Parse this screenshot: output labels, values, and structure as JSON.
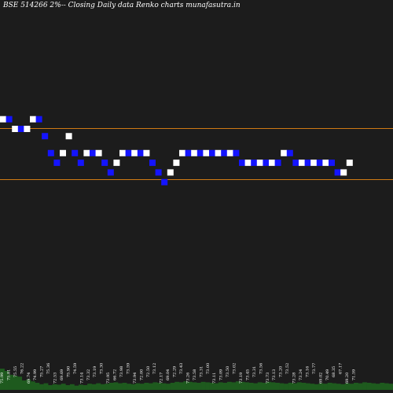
{
  "chart_data": {
    "type": "renko",
    "title": "BSE 514266  2%--  Closing Daily data  Renko  charts munafasutra.in",
    "colors": {
      "up": "#ffffff",
      "down": "#1414ff",
      "background": "#1c1c1c",
      "reference_line": "#d07a14",
      "volume": "#1e5a1e",
      "label": "#ffffff"
    },
    "ylim": [
      68.5,
      81.5
    ],
    "reference_lines": [
      77.5,
      75.4
    ],
    "bricks": [
      {
        "dir": "up",
        "top": 78.0
      },
      {
        "dir": "down",
        "top": 78.0
      },
      {
        "dir": "up",
        "top": 77.6
      },
      {
        "dir": "down",
        "top": 77.6
      },
      {
        "dir": "up",
        "top": 77.6
      },
      {
        "dir": "up",
        "top": 78.0
      },
      {
        "dir": "down",
        "top": 78.0
      },
      {
        "dir": "down",
        "top": 77.3
      },
      {
        "dir": "down",
        "top": 76.6
      },
      {
        "dir": "down",
        "top": 76.2
      },
      {
        "dir": "up",
        "top": 76.6
      },
      {
        "dir": "up",
        "top": 77.3
      },
      {
        "dir": "down",
        "top": 76.6
      },
      {
        "dir": "down",
        "top": 76.2
      },
      {
        "dir": "up",
        "top": 76.6
      },
      {
        "dir": "down",
        "top": 76.6
      },
      {
        "dir": "up",
        "top": 76.6
      },
      {
        "dir": "down",
        "top": 76.2
      },
      {
        "dir": "down",
        "top": 75.8
      },
      {
        "dir": "up",
        "top": 76.2
      },
      {
        "dir": "up",
        "top": 76.6
      },
      {
        "dir": "down",
        "top": 76.6
      },
      {
        "dir": "up",
        "top": 76.6
      },
      {
        "dir": "down",
        "top": 76.6
      },
      {
        "dir": "up",
        "top": 76.6
      },
      {
        "dir": "down",
        "top": 76.2
      },
      {
        "dir": "down",
        "top": 75.8
      },
      {
        "dir": "down",
        "top": 75.4
      },
      {
        "dir": "up",
        "top": 75.8
      },
      {
        "dir": "up",
        "top": 76.2
      },
      {
        "dir": "up",
        "top": 76.6
      },
      {
        "dir": "down",
        "top": 76.6
      },
      {
        "dir": "up",
        "top": 76.6
      },
      {
        "dir": "down",
        "top": 76.6
      },
      {
        "dir": "up",
        "top": 76.6
      },
      {
        "dir": "down",
        "top": 76.6
      },
      {
        "dir": "up",
        "top": 76.6
      },
      {
        "dir": "down",
        "top": 76.6
      },
      {
        "dir": "up",
        "top": 76.6
      },
      {
        "dir": "down",
        "top": 76.6
      },
      {
        "dir": "down",
        "top": 76.2
      },
      {
        "dir": "up",
        "top": 76.2
      },
      {
        "dir": "down",
        "top": 76.2
      },
      {
        "dir": "up",
        "top": 76.2
      },
      {
        "dir": "down",
        "top": 76.2
      },
      {
        "dir": "up",
        "top": 76.2
      },
      {
        "dir": "down",
        "top": 76.2
      },
      {
        "dir": "up",
        "top": 76.6
      },
      {
        "dir": "down",
        "top": 76.6
      },
      {
        "dir": "down",
        "top": 76.2
      },
      {
        "dir": "up",
        "top": 76.2
      },
      {
        "dir": "down",
        "top": 76.2
      },
      {
        "dir": "up",
        "top": 76.2
      },
      {
        "dir": "down",
        "top": 76.2
      },
      {
        "dir": "up",
        "top": 76.2
      },
      {
        "dir": "down",
        "top": 76.2
      },
      {
        "dir": "down",
        "top": 75.8
      },
      {
        "dir": "up",
        "top": 75.8
      },
      {
        "dir": "up",
        "top": 76.2
      }
    ],
    "price_labels": [
      "75.99",
      "75.81",
      "75.55",
      "76.22",
      "69.74",
      "74.99",
      "75.27",
      "75.36",
      "72.53",
      "69.69",
      "75.90",
      "74.59",
      "73.14",
      "73.32",
      "73.19",
      "73.30",
      "73.95",
      "66.72",
      "73.98",
      "73.59",
      "73.94",
      "72.00",
      "72.50",
      "73.12",
      "72.17",
      "69.04",
      "72.29",
      "73.43",
      "73.26",
      "73.58",
      "73.31",
      "73.00",
      "73.11",
      "73.09",
      "73.50",
      "73.02",
      "73.19",
      "73.45",
      "73.31",
      "73.56",
      "73.73",
      "73.13",
      "73.20",
      "73.52",
      "73.28",
      "73.24",
      "73.16",
      "73.77",
      "69.02",
      "70.49",
      "68.35",
      "67.17",
      "69.20",
      "71.59"
    ],
    "volume": [
      0.45,
      0.4,
      0.32,
      0.3,
      0.28,
      0.2,
      0.22,
      0.18,
      0.15,
      0.12,
      0.14,
      0.1,
      0.12,
      0.11,
      0.13,
      0.1,
      0.12,
      0.09,
      0.11,
      0.1,
      0.13,
      0.12,
      0.14,
      0.12,
      0.13,
      0.15,
      0.16,
      0.14,
      0.15,
      0.13,
      0.12,
      0.14,
      0.13,
      0.15,
      0.14,
      0.16,
      0.15,
      0.14,
      0.13,
      0.15,
      0.17,
      0.16,
      0.18,
      0.17,
      0.16,
      0.15,
      0.17,
      0.16,
      0.15,
      0.14,
      0.16,
      0.15,
      0.17,
      0.16,
      0.18,
      0.17,
      0.16,
      0.15,
      0.14,
      0.16,
      0.15,
      0.17,
      0.16,
      0.15,
      0.14,
      0.13,
      0.15,
      0.14,
      0.16,
      0.15,
      0.14,
      0.13,
      0.12,
      0.14,
      0.13,
      0.15,
      0.14,
      0.13,
      0.12,
      0.14,
      0.13,
      0.15,
      0.14,
      0.16,
      0.15,
      0.14,
      0.13,
      0.15,
      0.14,
      0.13
    ]
  }
}
